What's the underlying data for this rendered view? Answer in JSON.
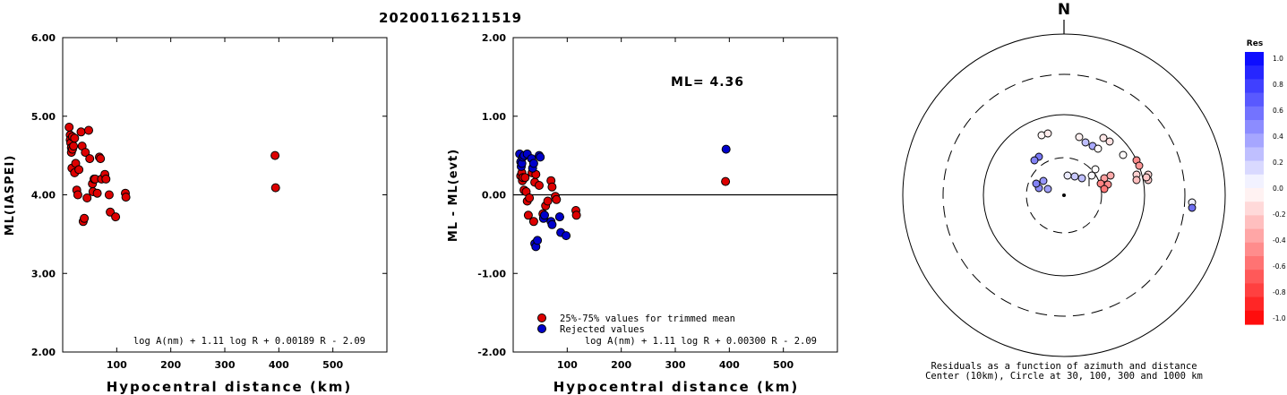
{
  "figure": {
    "title": "20200116211519",
    "north_label": "N",
    "res_title": "Res",
    "res_ticks": [
      "1.0",
      "0.8",
      "0.6",
      "0.4",
      "0.2",
      "0.0",
      "-0.2",
      "-0.4",
      "-0.6",
      "-0.8",
      "-1.0"
    ],
    "caption_line1": "Residuals as a function of azimuth and distance",
    "caption_line2": "Center (10km), Circle at 30, 100, 300 and 1000 km",
    "colors": {
      "rejected": "#0000cc",
      "accepted": "#dd0000",
      "max_pos": "#0000ff",
      "max_neg": "#ff0000"
    }
  },
  "chart_data": [
    {
      "type": "scatter",
      "title": "",
      "xlabel": "Hypocentral distance (km)",
      "ylabel": "ML(IASPEI)",
      "xlim": [
        0,
        600
      ],
      "ylim": [
        2.0,
        6.0
      ],
      "xticks": [
        "100",
        "200",
        "300",
        "400",
        "500"
      ],
      "yticks": [
        "2.00",
        "3.00",
        "4.00",
        "5.00",
        "6.00"
      ],
      "formula": "log A(nm) + 1.11 log R + 0.00189 R - 2.09",
      "series": [
        {
          "color": "#dd0000",
          "x": [
            12,
            14,
            14,
            15,
            16,
            16,
            17,
            18,
            18,
            20,
            22,
            22,
            24,
            26,
            28,
            30,
            34,
            36,
            38,
            40,
            42,
            45,
            48,
            50,
            55,
            56,
            58,
            60,
            64,
            68,
            70,
            72,
            78,
            80,
            86,
            88,
            98,
            116,
            117,
            393,
            394
          ],
          "y": [
            4.86,
            4.76,
            4.7,
            4.66,
            4.6,
            4.54,
            4.34,
            4.74,
            4.58,
            4.62,
            4.28,
            4.72,
            4.4,
            4.06,
            4.0,
            4.32,
            4.8,
            4.62,
            3.66,
            3.7,
            4.54,
            3.96,
            4.82,
            4.46,
            4.14,
            4.04,
            4.2,
            4.2,
            4.02,
            4.48,
            4.46,
            4.2,
            4.26,
            4.2,
            4.0,
            3.78,
            3.72,
            4.02,
            3.97,
            4.5,
            4.09
          ]
        }
      ]
    },
    {
      "type": "scatter",
      "title": "",
      "xlabel": "Hypocentral distance (km)",
      "ylabel": "ML - ML(evt)",
      "xlim": [
        0,
        600
      ],
      "ylim": [
        -2.0,
        2.0
      ],
      "xticks": [
        "100",
        "200",
        "300",
        "400",
        "500"
      ],
      "yticks": [
        "-2.00",
        "-1.00",
        "0.00",
        "1.00",
        "2.00"
      ],
      "annotation": "ML= 4.36",
      "formula": "log A(nm) + 1.11 log R + 0.00300 R - 2.09",
      "legend": [
        "25%-75% values for trimmed mean",
        "Rejected values"
      ],
      "series": [
        {
          "name": "25%-75% values for trimmed mean",
          "color": "#dd0000",
          "x": [
            14,
            16,
            17,
            18,
            20,
            22,
            24,
            26,
            28,
            30,
            35,
            38,
            40,
            42,
            48,
            55,
            60,
            64,
            70,
            72,
            78,
            80,
            86,
            116,
            117,
            393
          ],
          "y": [
            0.24,
            0.28,
            0.18,
            0.22,
            0.06,
            0.22,
            0.04,
            -0.08,
            -0.26,
            -0.04,
            0.28,
            -0.34,
            0.16,
            0.26,
            0.12,
            -0.24,
            -0.14,
            -0.08,
            0.18,
            0.1,
            -0.02,
            -0.06,
            -0.28,
            -0.2,
            -0.26,
            0.17
          ]
        },
        {
          "name": "Rejected values",
          "color": "#0000cc",
          "x": [
            12,
            14,
            15,
            16,
            18,
            20,
            26,
            34,
            36,
            38,
            40,
            42,
            45,
            48,
            50,
            56,
            58,
            70,
            72,
            86,
            88,
            98,
            394
          ],
          "y": [
            0.52,
            0.42,
            0.36,
            0.4,
            0.48,
            0.5,
            0.52,
            0.46,
            0.34,
            0.4,
            -0.62,
            -0.66,
            -0.58,
            0.5,
            0.48,
            -0.3,
            -0.26,
            -0.34,
            -0.38,
            -0.28,
            -0.48,
            -0.52,
            0.58
          ]
        }
      ]
    }
  ]
}
